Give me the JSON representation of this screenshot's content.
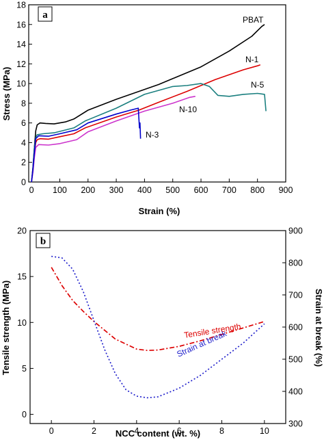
{
  "chart_data": [
    {
      "type": "line",
      "panel": "a",
      "xlabel": "Strain (%)",
      "ylabel": "Stress (MPa)",
      "xlim": [
        -10,
        900
      ],
      "ylim": [
        0,
        18
      ],
      "xticks": [
        0,
        100,
        200,
        300,
        400,
        500,
        600,
        700,
        800,
        900
      ],
      "yticks": [
        0,
        2,
        4,
        6,
        8,
        10,
        12,
        14,
        16,
        18
      ],
      "grid": false,
      "series": [
        {
          "name": "PBAT",
          "color": "#000000",
          "points": [
            [
              0,
              0
            ],
            [
              5,
              1.5
            ],
            [
              10,
              3.5
            ],
            [
              15,
              5.2
            ],
            [
              20,
              5.8
            ],
            [
              30,
              6.0
            ],
            [
              50,
              5.95
            ],
            [
              80,
              5.9
            ],
            [
              120,
              6.1
            ],
            [
              150,
              6.4
            ],
            [
              200,
              7.3
            ],
            [
              300,
              8.4
            ],
            [
              380,
              9.2
            ],
            [
              450,
              9.9
            ],
            [
              500,
              10.5
            ],
            [
              600,
              11.7
            ],
            [
              700,
              13.3
            ],
            [
              780,
              14.8
            ],
            [
              815,
              15.8
            ],
            [
              825,
              16.0
            ]
          ]
        },
        {
          "name": "N-1",
          "color": "#dd0000",
          "points": [
            [
              0,
              0
            ],
            [
              5,
              1.2
            ],
            [
              10,
              3.0
            ],
            [
              15,
              4.0
            ],
            [
              20,
              4.3
            ],
            [
              30,
              4.4
            ],
            [
              60,
              4.35
            ],
            [
              100,
              4.6
            ],
            [
              150,
              4.9
            ],
            [
              190,
              5.5
            ],
            [
              300,
              6.6
            ],
            [
              380,
              7.3
            ],
            [
              450,
              8.1
            ],
            [
              550,
              9.2
            ],
            [
              650,
              10.4
            ],
            [
              750,
              11.4
            ],
            [
              800,
              11.8
            ],
            [
              810,
              11.9
            ]
          ]
        },
        {
          "name": "N-5",
          "color": "#1a7f7f",
          "points": [
            [
              0,
              0
            ],
            [
              5,
              1.3
            ],
            [
              10,
              3.5
            ],
            [
              15,
              4.5
            ],
            [
              20,
              4.8
            ],
            [
              40,
              4.9
            ],
            [
              80,
              5.0
            ],
            [
              150,
              5.5
            ],
            [
              190,
              6.2
            ],
            [
              300,
              7.5
            ],
            [
              400,
              8.9
            ],
            [
              500,
              9.7
            ],
            [
              550,
              9.8
            ],
            [
              600,
              10.0
            ],
            [
              630,
              9.7
            ],
            [
              660,
              8.8
            ],
            [
              700,
              8.7
            ],
            [
              750,
              8.9
            ],
            [
              800,
              9.0
            ],
            [
              825,
              8.9
            ],
            [
              830,
              7.2
            ]
          ]
        },
        {
          "name": "N-10",
          "color": "#cc33cc",
          "points": [
            [
              0,
              0
            ],
            [
              5,
              1.0
            ],
            [
              10,
              2.5
            ],
            [
              15,
              3.5
            ],
            [
              25,
              3.8
            ],
            [
              60,
              3.75
            ],
            [
              100,
              3.9
            ],
            [
              160,
              4.3
            ],
            [
              200,
              5.1
            ],
            [
              300,
              6.2
            ],
            [
              400,
              7.2
            ],
            [
              500,
              8.0
            ],
            [
              560,
              8.6
            ],
            [
              580,
              8.7
            ]
          ]
        },
        {
          "name": "N-3",
          "color": "#0000cc",
          "points": [
            [
              0,
              0
            ],
            [
              5,
              1.3
            ],
            [
              10,
              3.0
            ],
            [
              15,
              4.4
            ],
            [
              25,
              4.7
            ],
            [
              60,
              4.65
            ],
            [
              100,
              4.9
            ],
            [
              160,
              5.3
            ],
            [
              200,
              6.0
            ],
            [
              300,
              6.9
            ],
            [
              350,
              7.3
            ],
            [
              378,
              7.5
            ],
            [
              382,
              5.5
            ],
            [
              384,
              6.0
            ],
            [
              386,
              4.4
            ]
          ]
        }
      ],
      "labels": {
        "PBAT": "PBAT",
        "N1": "N-1",
        "N5": "N-5",
        "N10": "N-10",
        "N3": "N-3",
        "panel": "a"
      }
    },
    {
      "type": "line",
      "panel": "b",
      "xlabel": "NCC content (wt. %)",
      "ylabel": "Tensile strength (MPa)",
      "y2label": "Strain at break (%)",
      "xlim": [
        -1,
        11
      ],
      "ylim": [
        -1,
        20
      ],
      "y2lim": [
        300,
        900
      ],
      "xticks": [
        0,
        2,
        4,
        6,
        8,
        10
      ],
      "yticks": [
        0,
        5,
        10,
        15,
        20
      ],
      "y2ticks": [
        300,
        400,
        500,
        600,
        700,
        800,
        900
      ],
      "grid": false,
      "series": [
        {
          "name": "Tensile strength",
          "color": "#dd0000",
          "axis": "left",
          "points": [
            [
              0,
              16
            ],
            [
              0.5,
              14
            ],
            [
              1,
              12.4
            ],
            [
              1.5,
              11.2
            ],
            [
              2,
              10.1
            ],
            [
              3,
              8.2
            ],
            [
              4,
              7.1
            ],
            [
              4.5,
              6.95
            ],
            [
              5,
              7.0
            ],
            [
              6,
              7.4
            ],
            [
              7,
              8.0
            ],
            [
              8,
              8.7
            ],
            [
              9,
              9.4
            ],
            [
              10,
              10.1
            ]
          ]
        },
        {
          "name": "Strain at break",
          "color": "#2222cc",
          "axis": "right",
          "points": [
            [
              0,
              820
            ],
            [
              0.5,
              815
            ],
            [
              1,
              780
            ],
            [
              1.5,
              710
            ],
            [
              2,
              620
            ],
            [
              2.5,
              530
            ],
            [
              3,
              455
            ],
            [
              3.5,
              405
            ],
            [
              4,
              385
            ],
            [
              4.5,
              380
            ],
            [
              5,
              383
            ],
            [
              6,
              410
            ],
            [
              7,
              450
            ],
            [
              8,
              500
            ],
            [
              9,
              550
            ],
            [
              10,
              610
            ]
          ]
        }
      ],
      "labels": {
        "tensile": "Tensile strength",
        "strain": "Strain at break",
        "panel": "b"
      }
    }
  ]
}
